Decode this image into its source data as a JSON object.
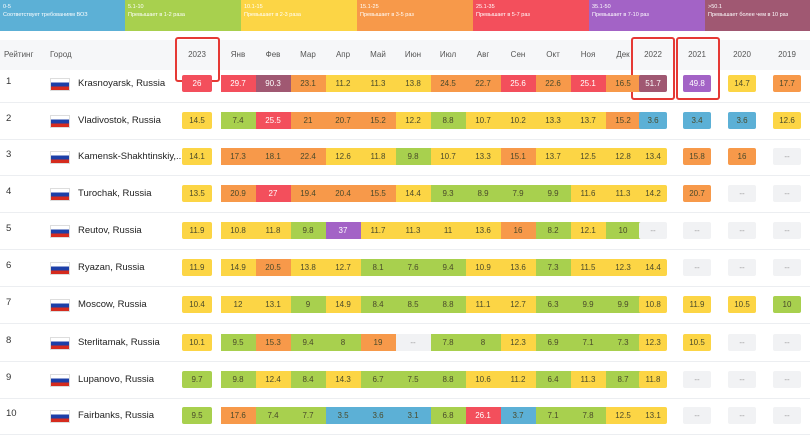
{
  "legend": [
    {
      "range": "0-5",
      "label": "Соответствует требованиям ВОЗ",
      "color": "#5cb0d6",
      "max": 5
    },
    {
      "range": "5.1-10",
      "label": "Превышает в 1-2 раза",
      "color": "#a8d04e",
      "max": 10
    },
    {
      "range": "10.1-15",
      "label": "Превышает в 2-3 раза",
      "color": "#fcd545",
      "max": 15
    },
    {
      "range": "15.1-25",
      "label": "Превышает в 3-5 раз",
      "color": "#f7994a",
      "max": 25
    },
    {
      "range": "25.1-35",
      "label": "Превышает в 5-7 раз",
      "color": "#f34f5c",
      "max": 35
    },
    {
      "range": "35.1-50",
      "label": "Превышает в 7-10 раз",
      "color": "#a363c6",
      "max": 50
    },
    {
      "range": ">50.1",
      "label": "Превышает более чем в 10 раз",
      "color": "#a05872"
    }
  ],
  "table": {
    "headers": [
      "Рейтинг",
      "Город",
      "2023",
      "Янв",
      "Фев",
      "Мар",
      "Апр",
      "Май",
      "Июн",
      "Июл",
      "Авг",
      "Сен",
      "Окт",
      "Ноя",
      "Дек",
      "2022",
      "2021",
      "2020",
      "2019"
    ],
    "rows": [
      {
        "rank": 1,
        "city": "Krasnoyarsk, Russia",
        "cells": [
          26,
          29.7,
          90.3,
          23.1,
          11.2,
          11.3,
          13.8,
          24.5,
          22.7,
          25.6,
          22.6,
          25.1,
          16.5,
          51.7,
          49.8,
          14.7,
          17.7
        ]
      },
      {
        "rank": 2,
        "city": "Vladivostok, Russia",
        "cells": [
          14.5,
          7.4,
          25.5,
          21,
          20.7,
          15.2,
          12.2,
          8.8,
          10.7,
          10.2,
          13.3,
          13.7,
          15.2,
          3.6,
          3.4,
          3.6,
          12.6
        ]
      },
      {
        "rank": 3,
        "city": "Kamensk-Shakhtinskiy,...",
        "cells": [
          14.1,
          17.3,
          18.1,
          22.4,
          12.6,
          11.8,
          9.8,
          10.7,
          13.3,
          15.1,
          13.7,
          12.5,
          12.8,
          13.4,
          15.8,
          16,
          "--"
        ]
      },
      {
        "rank": 4,
        "city": "Turochak, Russia",
        "cells": [
          13.5,
          20.9,
          27,
          19.4,
          20.4,
          15.5,
          14.4,
          9.3,
          8.9,
          7.9,
          9.9,
          11.6,
          11.3,
          14.2,
          20.7,
          "--",
          "--"
        ]
      },
      {
        "rank": 5,
        "city": "Reutov, Russia",
        "cells": [
          11.9,
          10.8,
          11.8,
          9.8,
          37,
          11.7,
          11.3,
          11,
          13.6,
          16,
          8.2,
          12.1,
          10,
          "--",
          "--",
          "--",
          "--"
        ]
      },
      {
        "rank": 6,
        "city": "Ryazan, Russia",
        "cells": [
          11.9,
          14.9,
          20.5,
          13.8,
          12.7,
          8.1,
          7.6,
          9.4,
          10.9,
          13.6,
          7.3,
          11.5,
          12.3,
          14.4,
          "--",
          "--",
          "--"
        ]
      },
      {
        "rank": 7,
        "city": "Moscow, Russia",
        "cells": [
          10.4,
          12,
          13.1,
          9,
          14.9,
          8.4,
          8.5,
          8.8,
          11.1,
          12.7,
          6.3,
          9.9,
          9.9,
          10.8,
          11.9,
          10.5,
          10
        ]
      },
      {
        "rank": 8,
        "city": "Sterlitamak, Russia",
        "cells": [
          10.1,
          9.5,
          15.3,
          9.4,
          8,
          19,
          "--",
          7.8,
          8,
          12.3,
          6.9,
          7.1,
          7.3,
          12.3,
          10.5,
          "--",
          "--"
        ]
      },
      {
        "rank": 9,
        "city": "Lupanovo, Russia",
        "cells": [
          9.7,
          9.8,
          12.4,
          8.4,
          14.3,
          6.7,
          7.5,
          8.8,
          10.6,
          11.2,
          6.4,
          11.3,
          8.7,
          11.8,
          "--",
          "--",
          "--"
        ]
      },
      {
        "rank": 10,
        "city": "Fairbanks, Russia",
        "cells": [
          9.5,
          17.6,
          7.4,
          7.7,
          3.5,
          3.6,
          3.1,
          6.8,
          26.1,
          3.7,
          7.1,
          7.8,
          12.5,
          13.1,
          "--",
          "--",
          "--"
        ]
      }
    ]
  }
}
